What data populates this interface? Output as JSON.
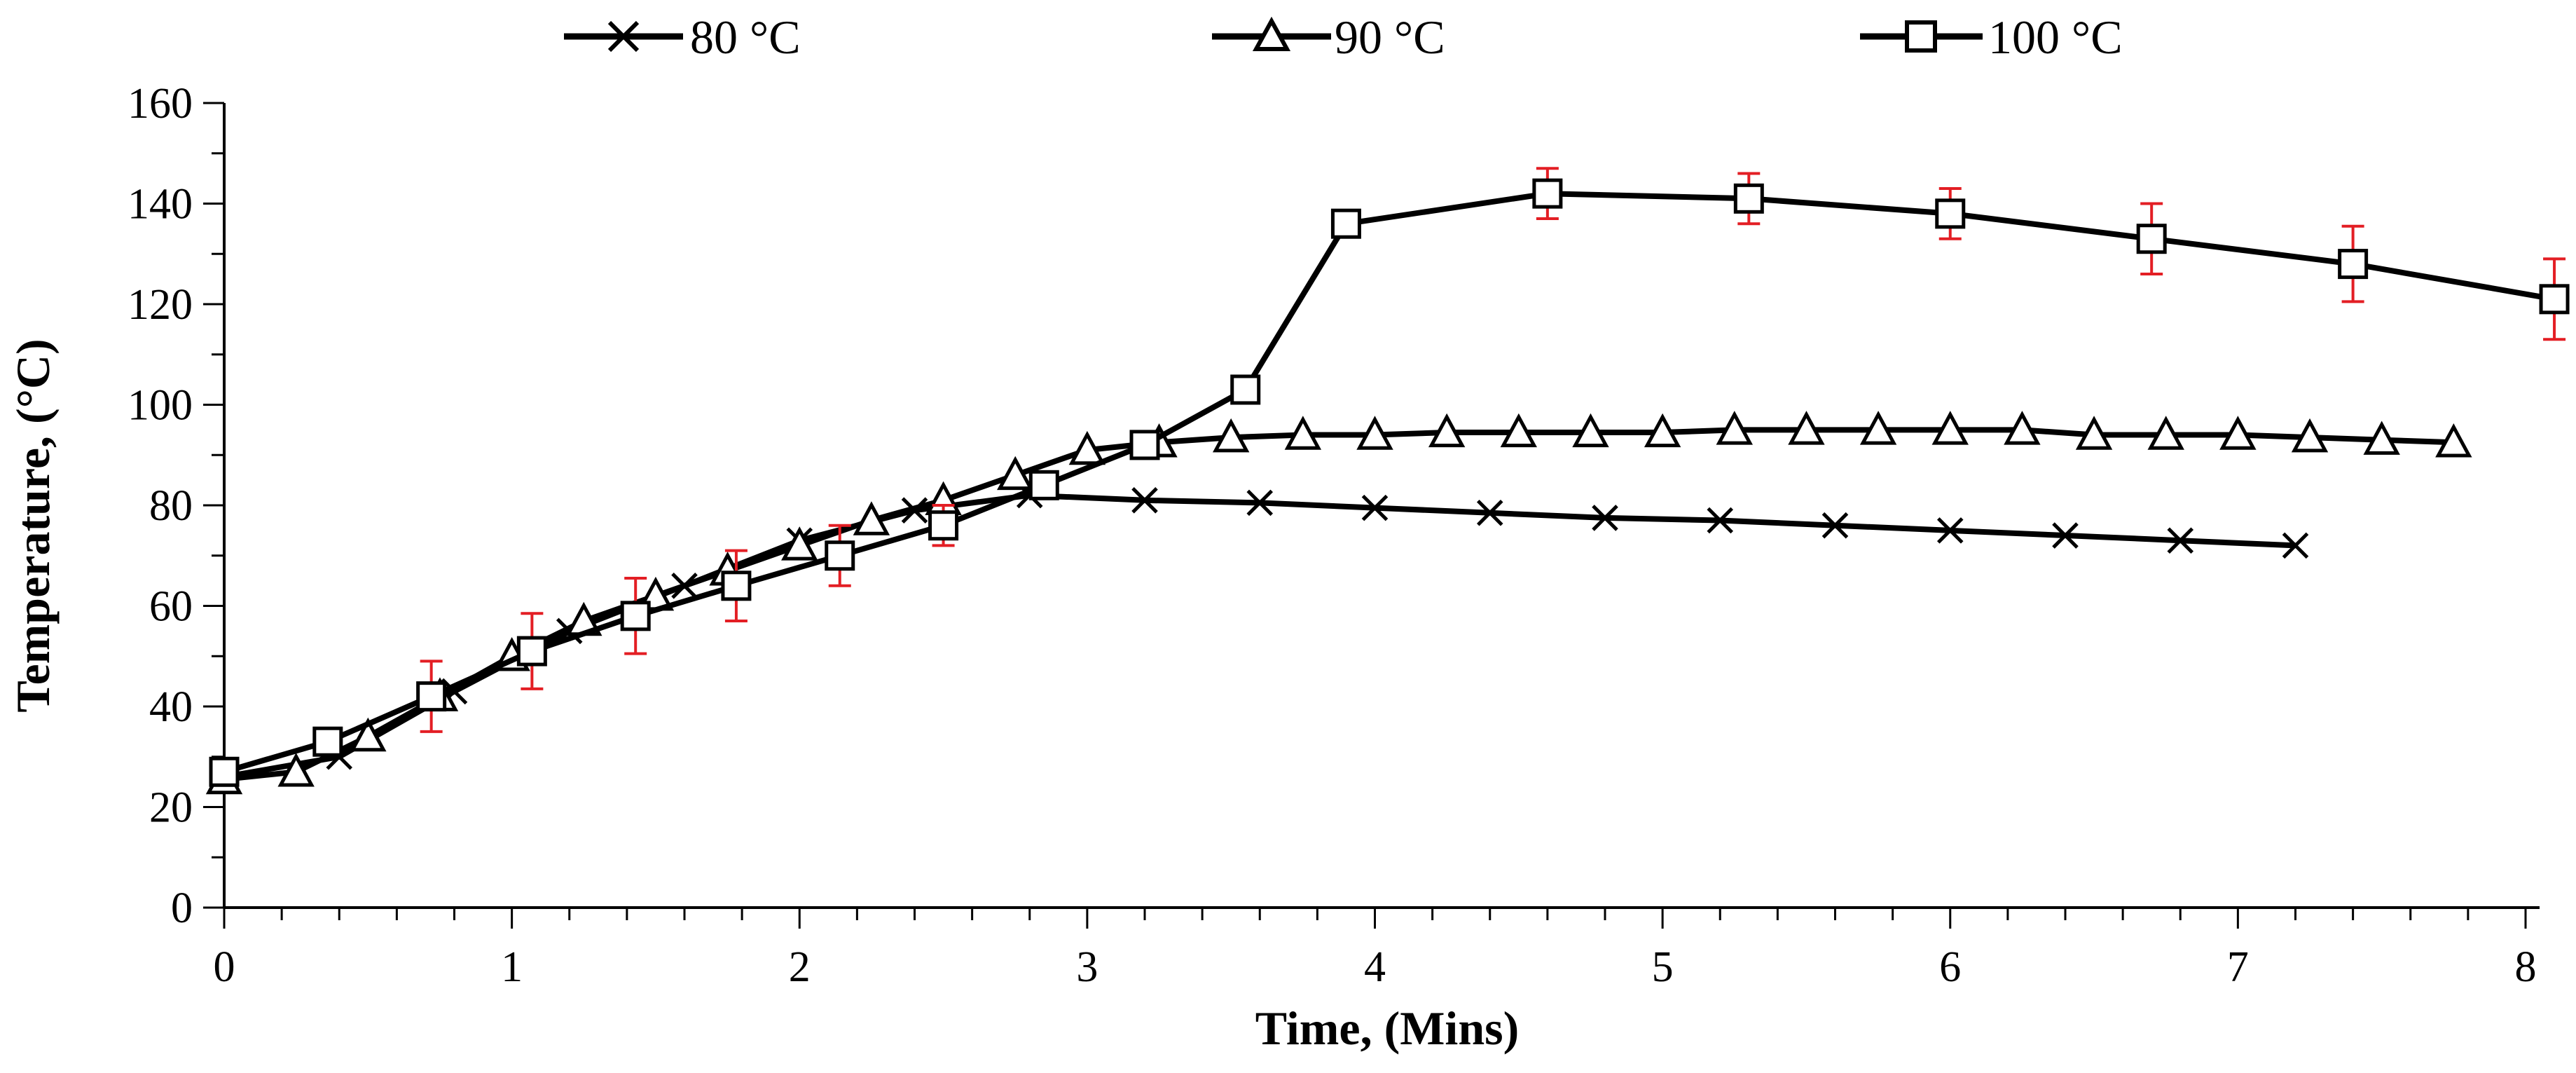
{
  "chart_data": {
    "type": "line",
    "title": "",
    "xlabel": "Time, (Mins)",
    "ylabel": "Temperature, (°C)",
    "xlim": [
      0,
      8
    ],
    "ylim": [
      0,
      160
    ],
    "x_ticks": [
      0,
      1,
      2,
      3,
      4,
      5,
      6,
      7,
      8
    ],
    "x_tick_labels": [
      "0",
      "1",
      "2",
      "3",
      "4",
      "5",
      "6",
      "7",
      "8"
    ],
    "y_ticks": [
      0,
      20,
      40,
      60,
      80,
      100,
      120,
      140,
      160
    ],
    "y_tick_labels": [
      "0",
      "20",
      "40",
      "60",
      "80",
      "100",
      "120",
      "140",
      "160"
    ],
    "grid": false,
    "legend_position": "top",
    "series": [
      {
        "name": "80 °C",
        "marker": "x",
        "color": "#000000",
        "x": [
          0,
          0.4,
          0.8,
          1.2,
          1.6,
          2.0,
          2.4,
          2.8,
          3.2,
          3.6,
          4.0,
          4.4,
          4.8,
          5.2,
          5.6,
          6.0,
          6.4,
          6.8,
          7.2
        ],
        "y": [
          26,
          30,
          43,
          55,
          64,
          73,
          79,
          82,
          81,
          80.5,
          79.5,
          78.5,
          77.5,
          77,
          76,
          75,
          74,
          73,
          72
        ]
      },
      {
        "name": "90 °C",
        "marker": "triangle",
        "color": "#000000",
        "x": [
          0,
          0.25,
          0.5,
          0.75,
          1.0,
          1.25,
          1.5,
          1.75,
          2.0,
          2.25,
          2.5,
          2.75,
          3.0,
          3.25,
          3.5,
          3.75,
          4.0,
          4.25,
          4.5,
          4.75,
          5.0,
          5.25,
          5.5,
          5.75,
          6.0,
          6.25,
          6.5,
          6.75,
          7.0,
          7.25,
          7.5,
          7.75
        ],
        "y": [
          25.5,
          27,
          34,
          42,
          50,
          57,
          62,
          67,
          72,
          77,
          81,
          86,
          91,
          92.5,
          93.5,
          94,
          94,
          94.5,
          94.5,
          94.5,
          94.5,
          95,
          95,
          95,
          95,
          95,
          94,
          94,
          94,
          93.5,
          93,
          92.5
        ]
      },
      {
        "name": "100 °C",
        "marker": "square",
        "color": "#000000",
        "x": [
          0,
          0.36,
          0.72,
          1.07,
          1.43,
          1.78,
          2.14,
          2.5,
          2.85,
          3.2,
          3.55,
          3.9,
          4.6,
          5.3,
          6.0,
          6.7,
          7.4,
          8.1
        ],
        "y": [
          27,
          33,
          42,
          51,
          58,
          64,
          70,
          76,
          84,
          92,
          103,
          136,
          142,
          141,
          138,
          133,
          128,
          121
        ],
        "error": [
          2,
          2,
          7,
          7.5,
          7.5,
          7,
          6,
          4,
          2,
          2,
          2,
          2,
          5,
          5,
          5,
          7,
          7.5,
          8
        ]
      }
    ]
  }
}
